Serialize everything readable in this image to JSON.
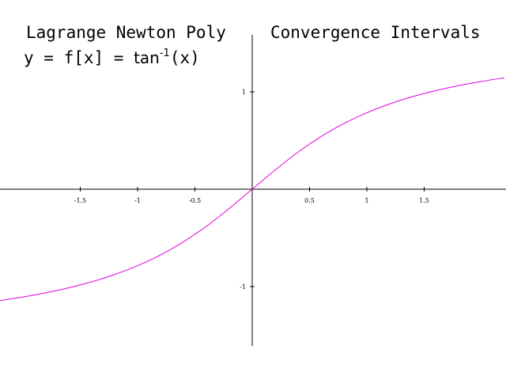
{
  "title": {
    "left": "Lagrange Newton Poly",
    "right": "Convergence Intervals",
    "equation_prefix": "y = f[x] = ",
    "func_name": "tan",
    "func_exp": "-1",
    "func_arg": "(x)"
  },
  "chart_data": {
    "type": "line",
    "title": "Lagrange Newton Poly  Convergence Intervals",
    "xlabel": "",
    "ylabel": "",
    "xlim": [
      -2.2,
      2.2
    ],
    "ylim": [
      -1.6,
      1.6
    ],
    "x_ticks": [
      -1.5,
      -1,
      -0.5,
      0.5,
      1,
      1.5
    ],
    "x_tick_labels": [
      "-1.5",
      "-1",
      "-0.5",
      "0.5",
      "1",
      "1.5"
    ],
    "y_ticks": [
      -1,
      1
    ],
    "y_tick_labels": [
      "-1",
      "1"
    ],
    "grid": false,
    "series": [
      {
        "name": "",
        "color": "#e000e0",
        "x": [
          -2.2,
          -2.0,
          -1.8,
          -1.6,
          -1.4,
          -1.2,
          -1.0,
          -0.8,
          -0.6,
          -0.4,
          -0.2,
          0.0,
          0.2,
          0.4,
          0.6,
          0.8,
          1.0,
          1.2,
          1.4,
          1.6,
          1.8,
          2.0,
          2.2
        ],
        "y": [
          -1.144,
          -1.107,
          -1.064,
          -1.012,
          -0.951,
          -0.876,
          -0.785,
          -0.675,
          -0.54,
          -0.381,
          -0.197,
          0.0,
          0.197,
          0.381,
          0.54,
          0.675,
          0.785,
          0.876,
          0.951,
          1.012,
          1.064,
          1.107,
          1.144
        ]
      }
    ]
  }
}
